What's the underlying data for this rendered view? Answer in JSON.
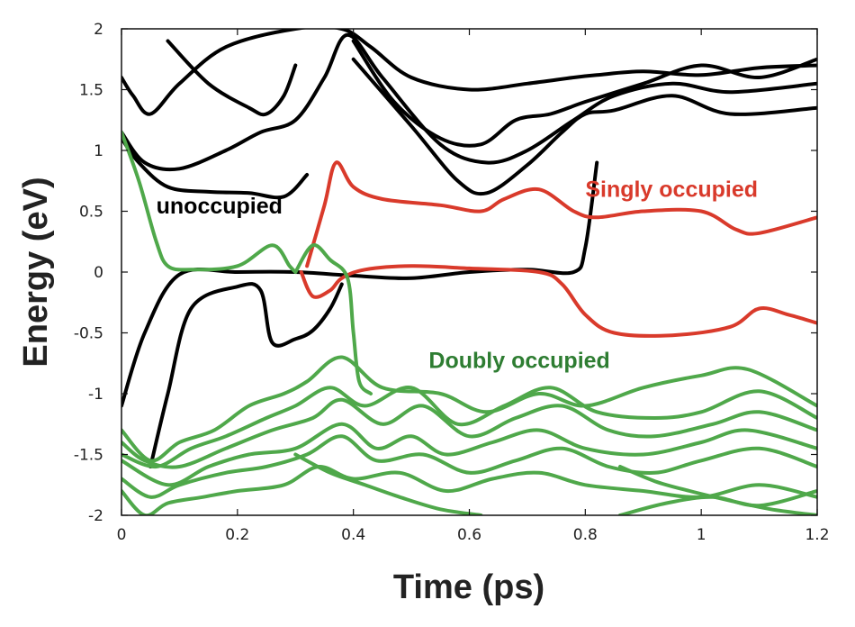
{
  "chart_data": {
    "type": "line",
    "xlabel": "Time (ps)",
    "ylabel": "Energy (eV)",
    "xlim": [
      0,
      1.2
    ],
    "ylim": [
      -2,
      2
    ],
    "x_ticks": [
      "0",
      "0.2",
      "0.4",
      "0.6",
      "0.8",
      "1",
      "1.2"
    ],
    "y_ticks": [
      "2",
      "1.5",
      "1",
      "0.5",
      "0",
      "-0.5",
      "-1",
      "-1.5",
      "-2"
    ],
    "grid": false,
    "colors": {
      "unoccupied": "#000000",
      "singly": "#d93a2b",
      "doubly": "#4fa84a"
    },
    "annotations": [
      {
        "text": "unoccupied",
        "color": "#000000",
        "x": 0.06,
        "y": 0.48
      },
      {
        "text": "Singly occupied",
        "color": "#d93a2b",
        "x": 0.8,
        "y": 0.62
      },
      {
        "text": "Doubly occupied",
        "color": "#2e7d32",
        "x": 0.53,
        "y": -0.79
      }
    ],
    "series": [
      {
        "name": "unoccupied",
        "color": "#000000",
        "x": [
          0,
          0.02,
          0.05,
          0.1,
          0.18,
          0.3,
          0.38,
          0.43,
          0.5,
          0.6,
          0.7,
          0.78,
          0.82,
          0.9,
          1.0,
          1.1,
          1.2
        ],
        "y": [
          1.6,
          1.45,
          1.3,
          1.55,
          1.85,
          2.0,
          2.0,
          1.85,
          1.6,
          1.5,
          1.55,
          1.6,
          1.62,
          1.65,
          1.62,
          1.68,
          1.7
        ]
      },
      {
        "name": "unoccupied",
        "color": "#000000",
        "x": [
          0,
          0.04,
          0.1,
          0.18,
          0.24,
          0.3,
          0.35,
          0.39,
          0.45,
          0.55,
          0.63,
          0.7,
          0.78,
          0.85,
          0.95,
          1.05,
          1.2
        ],
        "y": [
          1.15,
          0.9,
          0.85,
          1.0,
          1.15,
          1.25,
          1.6,
          1.95,
          1.6,
          1.05,
          0.9,
          1.0,
          1.25,
          1.45,
          1.55,
          1.48,
          1.55
        ]
      },
      {
        "name": "unoccupied",
        "color": "#000000",
        "x": [
          0,
          0.03,
          0.08,
          0.15,
          0.22,
          0.28,
          0.32
        ],
        "y": [
          1.1,
          0.9,
          0.7,
          0.66,
          0.65,
          0.62,
          0.8
        ]
      },
      {
        "name": "unoccupied",
        "color": "#000000",
        "x": [
          0.4,
          0.47,
          0.55,
          0.62,
          0.68,
          0.74,
          0.8,
          0.9,
          1.0,
          1.1,
          1.2
        ],
        "y": [
          1.9,
          1.4,
          1.1,
          1.05,
          1.25,
          1.3,
          1.4,
          1.55,
          1.7,
          1.6,
          1.75
        ]
      },
      {
        "name": "unoccupied",
        "color": "#000000",
        "x": [
          0.4,
          0.5,
          0.58,
          0.63,
          0.7,
          0.76,
          0.8,
          0.85,
          0.95,
          1.05,
          1.2
        ],
        "y": [
          1.75,
          1.2,
          0.75,
          0.65,
          0.88,
          1.15,
          1.3,
          1.33,
          1.45,
          1.3,
          1.35
        ]
      },
      {
        "name": "unoccupied",
        "color": "#000000",
        "x": [
          0.08,
          0.15,
          0.22,
          0.25,
          0.28,
          0.3
        ],
        "y": [
          1.9,
          1.55,
          1.35,
          1.3,
          1.45,
          1.7
        ]
      },
      {
        "name": "unoccupied",
        "color": "#000000",
        "x": [
          0,
          0.04,
          0.1,
          0.2,
          0.3,
          0.4,
          0.5,
          0.6,
          0.7,
          0.78,
          0.8,
          0.82
        ],
        "y": [
          -1.1,
          -0.5,
          -0.02,
          0.0,
          0.0,
          -0.03,
          -0.05,
          0.0,
          0.02,
          0.0,
          0.2,
          0.9
        ]
      },
      {
        "name": "unoccupied",
        "color": "#000000",
        "x": [
          0.05,
          0.08,
          0.12,
          0.2,
          0.24,
          0.26,
          0.3,
          0.33,
          0.36,
          0.38
        ],
        "y": [
          -1.6,
          -1.0,
          -0.3,
          -0.12,
          -0.15,
          -0.58,
          -0.55,
          -0.48,
          -0.3,
          -0.1
        ]
      },
      {
        "name": "singly occupied",
        "color": "#d93a2b",
        "x": [
          0.32,
          0.35,
          0.37,
          0.4,
          0.45,
          0.55,
          0.62,
          0.66,
          0.72,
          0.78,
          0.82,
          0.9,
          1.0,
          1.06,
          1.1,
          1.2
        ],
        "y": [
          0.05,
          0.55,
          0.9,
          0.7,
          0.6,
          0.55,
          0.5,
          0.6,
          0.68,
          0.5,
          0.45,
          0.5,
          0.5,
          0.35,
          0.32,
          0.45
        ]
      },
      {
        "name": "singly occupied",
        "color": "#d93a2b",
        "x": [
          0.31,
          0.33,
          0.36,
          0.38,
          0.42,
          0.5,
          0.6,
          0.72,
          0.76,
          0.8,
          0.85,
          0.95,
          1.05,
          1.1,
          1.15,
          1.2
        ],
        "y": [
          0.0,
          -0.2,
          -0.15,
          -0.05,
          0.02,
          0.05,
          0.03,
          0.0,
          -0.1,
          -0.35,
          -0.5,
          -0.52,
          -0.45,
          -0.3,
          -0.35,
          -0.42
        ]
      },
      {
        "name": "doubly occupied",
        "color": "#4fa84a",
        "x": [
          0,
          0.03,
          0.06,
          0.08,
          0.12,
          0.2,
          0.26,
          0.29,
          0.3
        ],
        "y": [
          1.15,
          0.75,
          0.25,
          0.05,
          0.02,
          0.05,
          0.22,
          0.05,
          0.0
        ]
      },
      {
        "name": "doubly occupied",
        "color": "#4fa84a",
        "x": [
          0.3,
          0.33,
          0.36,
          0.39,
          0.4,
          0.41,
          0.43
        ],
        "y": [
          0.0,
          0.22,
          0.1,
          -0.05,
          -0.5,
          -0.9,
          -1.0
        ]
      },
      {
        "name": "doubly occupied",
        "color": "#4fa84a",
        "x": [
          0,
          0.05,
          0.1,
          0.16,
          0.22,
          0.28,
          0.32,
          0.38,
          0.45,
          0.55,
          0.63,
          0.72,
          0.8,
          0.9,
          1.0,
          1.08,
          1.2
        ],
        "y": [
          -1.3,
          -1.55,
          -1.4,
          -1.3,
          -1.1,
          -1.0,
          -0.9,
          -0.7,
          -0.95,
          -1.0,
          -1.15,
          -1.0,
          -1.1,
          -0.95,
          -0.85,
          -0.8,
          -1.1
        ]
      },
      {
        "name": "doubly occupied",
        "color": "#4fa84a",
        "x": [
          0,
          0.06,
          0.12,
          0.18,
          0.25,
          0.3,
          0.36,
          0.42,
          0.5,
          0.58,
          0.66,
          0.74,
          0.82,
          0.92,
          1.0,
          1.1,
          1.2
        ],
        "y": [
          -1.5,
          -1.6,
          -1.45,
          -1.35,
          -1.2,
          -1.1,
          -0.95,
          -1.1,
          -0.95,
          -1.25,
          -1.1,
          -0.95,
          -1.15,
          -1.2,
          -1.15,
          -0.98,
          -1.2
        ]
      },
      {
        "name": "doubly occupied",
        "color": "#4fa84a",
        "x": [
          0,
          0.04,
          0.1,
          0.18,
          0.26,
          0.33,
          0.38,
          0.45,
          0.52,
          0.6,
          0.68,
          0.76,
          0.84,
          0.92,
          1.02,
          1.1,
          1.2
        ],
        "y": [
          -1.4,
          -1.55,
          -1.6,
          -1.45,
          -1.3,
          -1.2,
          -1.05,
          -1.25,
          -1.1,
          -1.35,
          -1.2,
          -1.1,
          -1.3,
          -1.35,
          -1.25,
          -1.15,
          -1.3
        ]
      },
      {
        "name": "doubly occupied",
        "color": "#4fa84a",
        "x": [
          0,
          0.08,
          0.15,
          0.22,
          0.3,
          0.38,
          0.44,
          0.5,
          0.56,
          0.64,
          0.72,
          0.8,
          0.9,
          1.0,
          1.08,
          1.2
        ],
        "y": [
          -1.55,
          -1.75,
          -1.6,
          -1.5,
          -1.45,
          -1.25,
          -1.45,
          -1.35,
          -1.5,
          -1.4,
          -1.3,
          -1.45,
          -1.5,
          -1.4,
          -1.3,
          -1.45
        ]
      },
      {
        "name": "doubly occupied",
        "color": "#4fa84a",
        "x": [
          0,
          0.05,
          0.1,
          0.18,
          0.25,
          0.32,
          0.38,
          0.44,
          0.52,
          0.6,
          0.68,
          0.76,
          0.84,
          0.92,
          1.0,
          1.1,
          1.2
        ],
        "y": [
          -1.7,
          -1.85,
          -1.75,
          -1.65,
          -1.6,
          -1.5,
          -1.35,
          -1.55,
          -1.5,
          -1.65,
          -1.55,
          -1.45,
          -1.6,
          -1.65,
          -1.55,
          -1.45,
          -1.6
        ]
      },
      {
        "name": "doubly occupied",
        "color": "#4fa84a",
        "x": [
          0,
          0.04,
          0.08,
          0.14,
          0.2,
          0.28,
          0.34,
          0.4,
          0.48,
          0.56,
          0.64,
          0.72,
          0.8,
          0.9,
          1.0,
          1.1,
          1.2
        ],
        "y": [
          -1.8,
          -2.0,
          -1.9,
          -1.85,
          -1.8,
          -1.75,
          -1.6,
          -1.7,
          -1.65,
          -1.8,
          -1.7,
          -1.65,
          -1.75,
          -1.8,
          -1.85,
          -1.75,
          -1.85
        ]
      },
      {
        "name": "doubly occupied",
        "color": "#4fa84a",
        "x": [
          0.3,
          0.36,
          0.42,
          0.48,
          0.55,
          0.62
        ],
        "y": [
          -1.5,
          -1.65,
          -1.75,
          -1.85,
          -1.95,
          -2.0
        ]
      },
      {
        "name": "doubly occupied",
        "color": "#4fa84a",
        "x": [
          0.86,
          0.92,
          0.98,
          1.05,
          1.12,
          1.2
        ],
        "y": [
          -1.6,
          -1.72,
          -1.8,
          -1.88,
          -1.95,
          -2.0
        ]
      },
      {
        "name": "doubly occupied",
        "color": "#4fa84a",
        "x": [
          0.86,
          0.94,
          1.02,
          1.1,
          1.2
        ],
        "y": [
          -2.0,
          -1.9,
          -1.85,
          -1.92,
          -1.8
        ]
      }
    ]
  }
}
